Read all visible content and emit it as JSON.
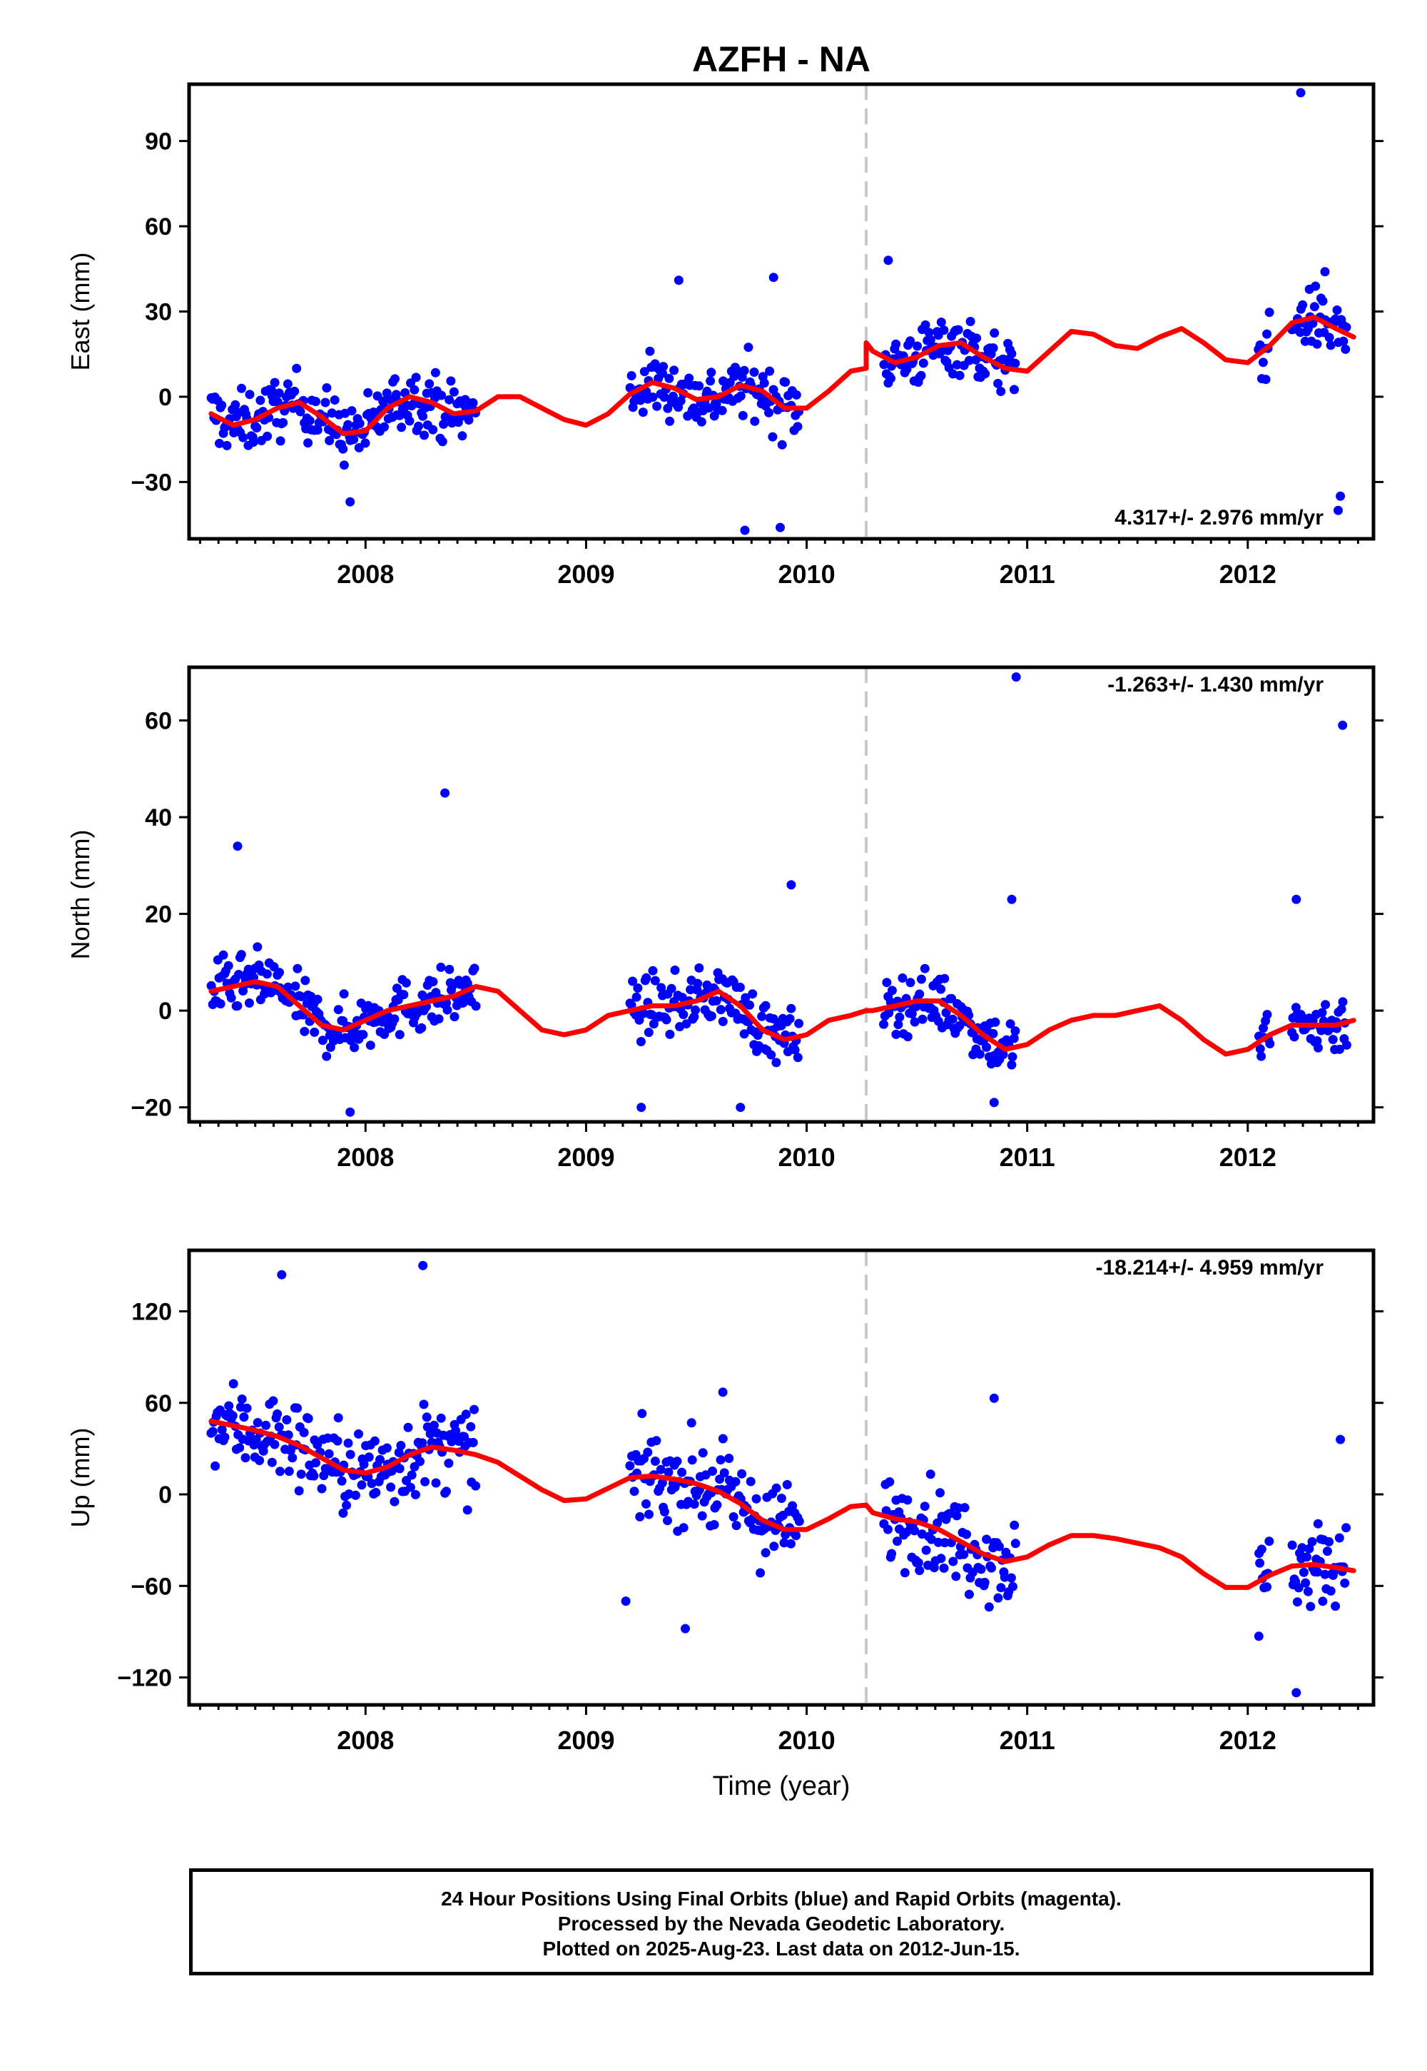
{
  "title": "AZFH - NA",
  "xlabel": "Time (year)",
  "footer": {
    "line1": "24 Hour Positions Using Final Orbits (blue) and Rapid Orbits (magenta).",
    "line2": "Processed by the Nevada Geodetic Laboratory.",
    "line3": "Plotted on 2025-Aug-23. Last data on 2012-Jun-15."
  },
  "colors": {
    "points": "#0000ff",
    "model": "#ff0000",
    "equipment_change": "#c8c8c8",
    "frame": "#000000"
  },
  "chart_data": [
    {
      "type": "scatter",
      "name": "east",
      "ylabel": "East (mm)",
      "xlim": [
        2007.2,
        2012.57
      ],
      "ylim": [
        -50,
        110
      ],
      "yticks": [
        -30,
        0,
        30,
        60,
        90
      ],
      "xticks": [
        2008,
        2009,
        2010,
        2011,
        2012
      ],
      "rate_label": "4.317+/- 2.976 mm/yr",
      "step_epoch": 2010.27,
      "grid": false,
      "series": [
        {
          "kind": "points",
          "x_ranges": [
            [
              2007.3,
              2008.5
            ],
            [
              2009.2,
              2009.97
            ],
            [
              2010.35,
              2010.95
            ],
            [
              2012.05,
              2012.1
            ],
            [
              2012.2,
              2012.45
            ]
          ],
          "outliers": [
            [
              2012.24,
              107
            ],
            [
              2009.88,
              -46
            ],
            [
              2009.72,
              -47
            ],
            [
              2012.42,
              -35
            ],
            [
              2012.41,
              -40
            ],
            [
              2009.42,
              41
            ],
            [
              2009.85,
              42
            ],
            [
              2012.35,
              44
            ],
            [
              2007.93,
              -37
            ],
            [
              2010.37,
              48
            ]
          ]
        },
        {
          "kind": "model",
          "x": [
            2007.3,
            2007.4,
            2007.5,
            2007.6,
            2007.7,
            2007.8,
            2007.9,
            2008.0,
            2008.1,
            2008.2,
            2008.3,
            2008.4,
            2008.5,
            2008.6,
            2008.7,
            2008.8,
            2008.9,
            2009.0,
            2009.1,
            2009.2,
            2009.3,
            2009.4,
            2009.5,
            2009.6,
            2009.7,
            2009.8,
            2009.9,
            2010.0,
            2010.1,
            2010.2,
            2010.27,
            2010.27,
            2010.3,
            2010.4,
            2010.5,
            2010.6,
            2010.7,
            2010.8,
            2010.9,
            2011.0,
            2011.1,
            2011.2,
            2011.3,
            2011.4,
            2011.5,
            2011.6,
            2011.7,
            2011.8,
            2011.9,
            2012.0,
            2012.1,
            2012.2,
            2012.3,
            2012.4,
            2012.48
          ],
          "y": [
            -6,
            -10,
            -8,
            -4,
            -2,
            -7,
            -13,
            -12,
            -4,
            0,
            -2,
            -6,
            -5,
            0,
            0,
            -4,
            -8,
            -10,
            -6,
            1,
            5,
            3,
            -1,
            0,
            4,
            2,
            -4,
            -4,
            2,
            9,
            10,
            19,
            16,
            12,
            14,
            18,
            19,
            14,
            10,
            9,
            16,
            23,
            22,
            18,
            17,
            21,
            24,
            19,
            13,
            12,
            18,
            26,
            28,
            24,
            21
          ]
        }
      ]
    },
    {
      "type": "scatter",
      "name": "north",
      "ylabel": "North (mm)",
      "xlim": [
        2007.2,
        2012.57
      ],
      "ylim": [
        -23,
        71
      ],
      "yticks": [
        -20,
        0,
        20,
        40,
        60
      ],
      "xticks": [
        2008,
        2009,
        2010,
        2011,
        2012
      ],
      "rate_label": "-1.263+/- 1.430 mm/yr",
      "step_epoch": 2010.27,
      "grid": false,
      "series": [
        {
          "kind": "points",
          "x_ranges": [
            [
              2007.3,
              2008.5
            ],
            [
              2009.2,
              2009.97
            ],
            [
              2010.35,
              2010.95
            ],
            [
              2012.05,
              2012.1
            ],
            [
              2012.2,
              2012.45
            ]
          ],
          "outliers": [
            [
              2010.95,
              69
            ],
            [
              2012.43,
              59
            ],
            [
              2008.36,
              45
            ],
            [
              2007.42,
              34
            ],
            [
              2012.22,
              23
            ],
            [
              2010.93,
              23
            ],
            [
              2009.93,
              26
            ],
            [
              2009.25,
              -20
            ],
            [
              2009.7,
              -20
            ],
            [
              2010.85,
              -19
            ],
            [
              2007.93,
              -21
            ]
          ]
        },
        {
          "kind": "model",
          "x": [
            2007.3,
            2007.4,
            2007.5,
            2007.6,
            2007.7,
            2007.8,
            2007.9,
            2008.0,
            2008.1,
            2008.2,
            2008.3,
            2008.4,
            2008.5,
            2008.6,
            2008.7,
            2008.8,
            2008.9,
            2009.0,
            2009.1,
            2009.2,
            2009.3,
            2009.4,
            2009.5,
            2009.6,
            2009.7,
            2009.8,
            2009.9,
            2010.0,
            2010.1,
            2010.2,
            2010.27,
            2010.3,
            2010.4,
            2010.5,
            2010.6,
            2010.7,
            2010.8,
            2010.9,
            2011.0,
            2011.1,
            2011.2,
            2011.3,
            2011.4,
            2011.5,
            2011.6,
            2011.7,
            2011.8,
            2011.9,
            2012.0,
            2012.1,
            2012.2,
            2012.3,
            2012.4,
            2012.48
          ],
          "y": [
            4,
            5,
            6,
            5,
            1,
            -3,
            -4,
            -2,
            0,
            1,
            2,
            3,
            5,
            4,
            0,
            -4,
            -5,
            -4,
            -1,
            0,
            1,
            1,
            2,
            4,
            1,
            -4,
            -6,
            -5,
            -2,
            -1,
            0,
            0,
            1,
            2,
            2,
            -1,
            -5,
            -8,
            -7,
            -4,
            -2,
            -1,
            -1,
            0,
            1,
            -2,
            -6,
            -9,
            -8,
            -5,
            -3,
            -3,
            -3,
            -2
          ]
        }
      ]
    },
    {
      "type": "scatter",
      "name": "up",
      "ylabel": "Up (mm)",
      "xlim": [
        2007.2,
        2012.57
      ],
      "ylim": [
        -138,
        160
      ],
      "yticks": [
        -120,
        -60,
        0,
        60,
        120
      ],
      "xticks": [
        2008,
        2009,
        2010,
        2011,
        2012
      ],
      "rate_label": "-18.214+/- 4.959 mm/yr",
      "step_epoch": 2010.27,
      "grid": false,
      "series": [
        {
          "kind": "points",
          "x_ranges": [
            [
              2007.3,
              2008.5
            ],
            [
              2009.2,
              2009.97
            ],
            [
              2010.35,
              2010.95
            ],
            [
              2012.05,
              2012.1
            ],
            [
              2012.2,
              2012.45
            ]
          ],
          "outliers": [
            [
              2008.26,
              150
            ],
            [
              2007.62,
              144
            ],
            [
              2012.22,
              -130
            ],
            [
              2009.45,
              -88
            ],
            [
              2009.18,
              -70
            ],
            [
              2010.85,
              63
            ],
            [
              2012.42,
              36
            ],
            [
              2009.62,
              67
            ],
            [
              2012.05,
              -93
            ]
          ]
        },
        {
          "kind": "model",
          "x": [
            2007.3,
            2007.4,
            2007.5,
            2007.6,
            2007.7,
            2007.8,
            2007.9,
            2008.0,
            2008.1,
            2008.2,
            2008.3,
            2008.4,
            2008.5,
            2008.6,
            2008.7,
            2008.8,
            2008.9,
            2009.0,
            2009.1,
            2009.2,
            2009.3,
            2009.4,
            2009.5,
            2009.6,
            2009.7,
            2009.8,
            2009.9,
            2010.0,
            2010.1,
            2010.2,
            2010.27,
            2010.27,
            2010.3,
            2010.4,
            2010.5,
            2010.6,
            2010.7,
            2010.8,
            2010.9,
            2011.0,
            2011.1,
            2011.2,
            2011.3,
            2011.4,
            2011.5,
            2011.6,
            2011.7,
            2011.8,
            2011.9,
            2012.0,
            2012.1,
            2012.2,
            2012.3,
            2012.4,
            2012.48
          ],
          "y": [
            48,
            45,
            42,
            38,
            32,
            24,
            16,
            14,
            18,
            26,
            31,
            29,
            26,
            21,
            12,
            3,
            -4,
            -3,
            4,
            11,
            12,
            10,
            7,
            2,
            -6,
            -17,
            -23,
            -23,
            -16,
            -8,
            -7,
            -7,
            -12,
            -16,
            -18,
            -23,
            -31,
            -39,
            -44,
            -41,
            -33,
            -27,
            -27,
            -29,
            -32,
            -35,
            -41,
            -52,
            -61,
            -61,
            -53,
            -47,
            -46,
            -48,
            -50
          ]
        }
      ]
    }
  ]
}
